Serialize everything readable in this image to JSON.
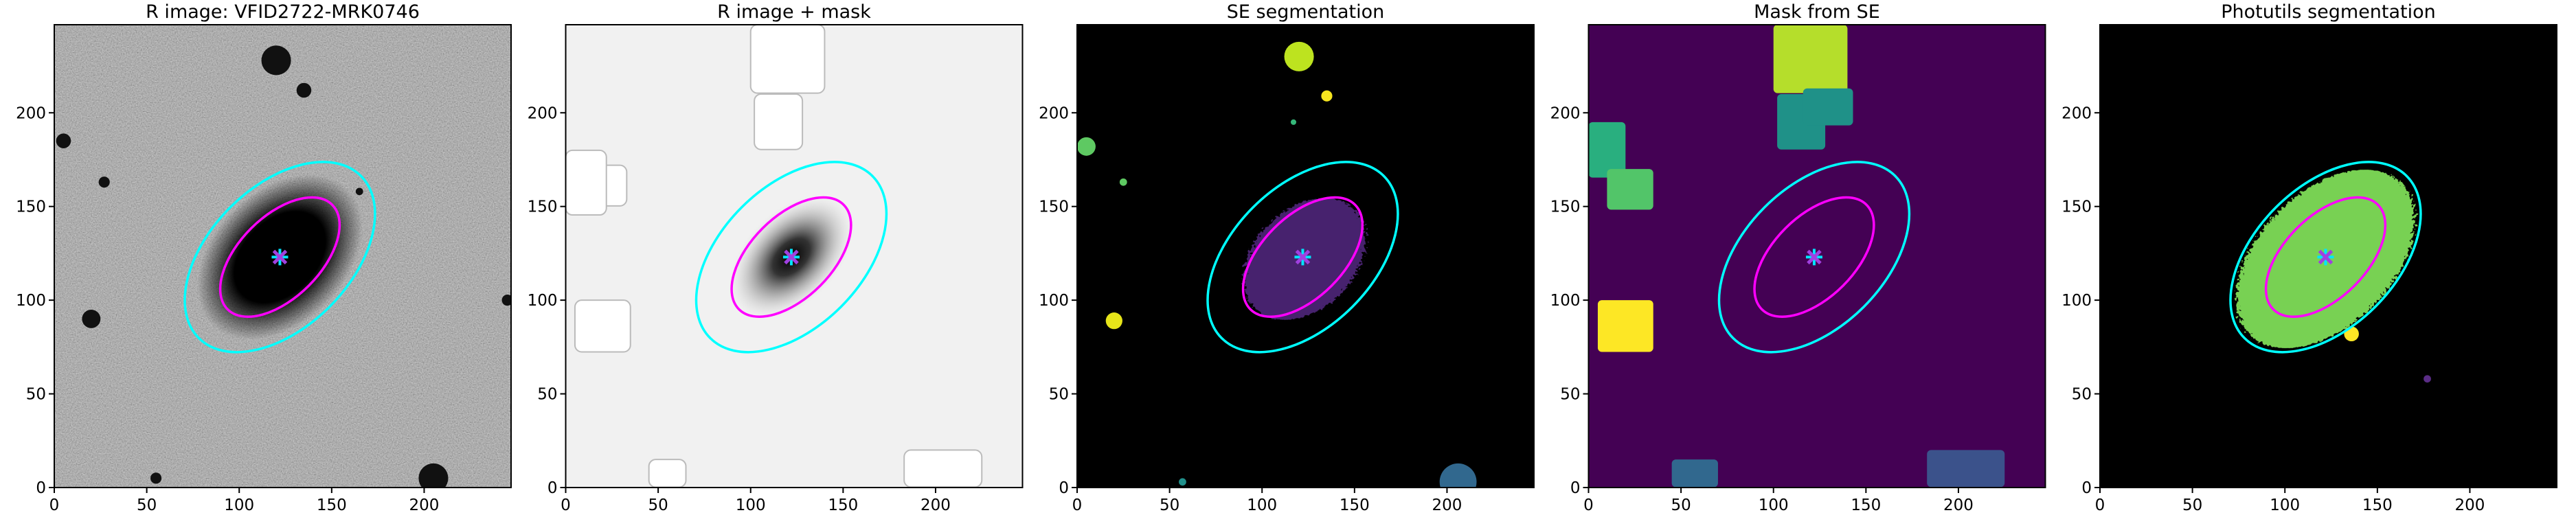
{
  "chart_data": [
    {
      "type": "image",
      "title": "R image: VFID2722-MRK0746",
      "xlim": [
        0,
        247
      ],
      "ylim": [
        0,
        247
      ],
      "xticks": [
        0,
        50,
        100,
        150,
        200
      ],
      "yticks": [
        0,
        50,
        100,
        150,
        200
      ]
    },
    {
      "type": "image",
      "title": "R image + mask",
      "xlim": [
        0,
        247
      ],
      "ylim": [
        0,
        247
      ],
      "xticks": [
        0,
        50,
        100,
        150,
        200
      ],
      "yticks": [
        0,
        50,
        100,
        150,
        200
      ]
    },
    {
      "type": "image",
      "title": "SE segmentation",
      "xlim": [
        0,
        247
      ],
      "ylim": [
        0,
        247
      ],
      "xticks": [
        0,
        50,
        100,
        150,
        200
      ],
      "yticks": [
        0,
        50,
        100,
        150,
        200
      ]
    },
    {
      "type": "image",
      "title": "Mask from SE",
      "xlim": [
        0,
        247
      ],
      "ylim": [
        0,
        247
      ],
      "xticks": [
        0,
        50,
        100,
        150,
        200
      ],
      "yticks": [
        0,
        50,
        100,
        150,
        200
      ]
    },
    {
      "type": "image",
      "title": "Photutils segmentation",
      "xlim": [
        0,
        247
      ],
      "ylim": [
        0,
        247
      ],
      "xticks": [
        0,
        50,
        100,
        150,
        200
      ],
      "yticks": [
        0,
        50,
        100,
        150,
        200
      ]
    }
  ]
}
